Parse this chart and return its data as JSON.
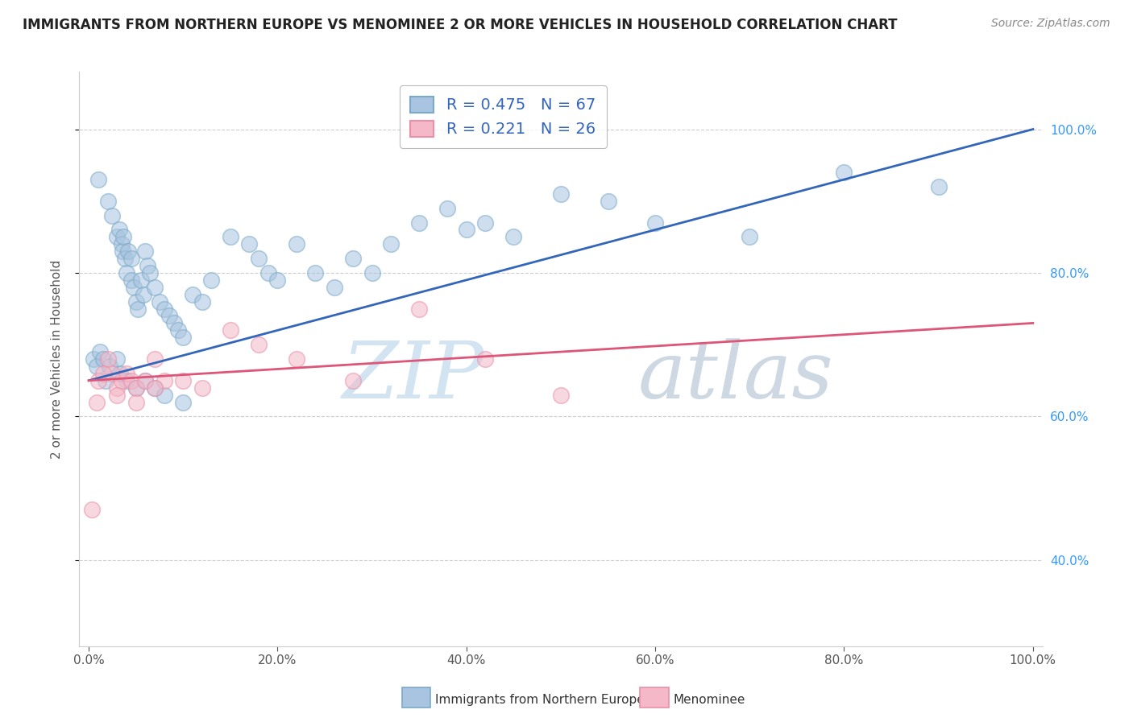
{
  "title": "IMMIGRANTS FROM NORTHERN EUROPE VS MENOMINEE 2 OR MORE VEHICLES IN HOUSEHOLD CORRELATION CHART",
  "source": "Source: ZipAtlas.com",
  "xlabel_bottom": "Immigrants from Northern Europe",
  "ylabel": "2 or more Vehicles in Household",
  "watermark": "ZIPatlas",
  "legend_label_blue": "Immigrants from Northern Europe",
  "legend_label_pink": "Menominee",
  "R_blue": 0.475,
  "N_blue": 67,
  "R_pink": 0.221,
  "N_pink": 26,
  "blue_scatter_color": "#a8c4e0",
  "pink_scatter_color": "#f4b8c8",
  "blue_scatter_edge": "#7aaac8",
  "pink_scatter_edge": "#e890a8",
  "line_blue_color": "#3366bb",
  "line_pink_color": "#dd5577",
  "blue_scatter_x": [
    1.0,
    2.0,
    2.5,
    3.0,
    3.2,
    3.5,
    3.6,
    3.7,
    3.8,
    4.0,
    4.2,
    4.5,
    4.5,
    4.8,
    5.0,
    5.2,
    5.5,
    5.8,
    6.0,
    6.2,
    6.5,
    7.0,
    7.5,
    8.0,
    8.5,
    9.0,
    9.5,
    10.0,
    11.0,
    12.0,
    13.0,
    15.0,
    17.0,
    18.0,
    19.0,
    20.0,
    22.0,
    24.0,
    26.0,
    28.0,
    30.0,
    32.0,
    35.0,
    38.0,
    40.0,
    42.0,
    45.0,
    50.0,
    55.0,
    60.0,
    70.0,
    80.0,
    90.0,
    0.5,
    0.8,
    1.2,
    1.5,
    1.8,
    2.2,
    3.0,
    3.3,
    4.0,
    5.0,
    6.0,
    7.0,
    8.0,
    10.0
  ],
  "blue_scatter_y": [
    93.0,
    90.0,
    88.0,
    85.0,
    86.0,
    84.0,
    83.0,
    85.0,
    82.0,
    80.0,
    83.0,
    82.0,
    79.0,
    78.0,
    76.0,
    75.0,
    79.0,
    77.0,
    83.0,
    81.0,
    80.0,
    78.0,
    76.0,
    75.0,
    74.0,
    73.0,
    72.0,
    71.0,
    77.0,
    76.0,
    79.0,
    85.0,
    84.0,
    82.0,
    80.0,
    79.0,
    84.0,
    80.0,
    78.0,
    82.0,
    80.0,
    84.0,
    87.0,
    89.0,
    86.0,
    87.0,
    85.0,
    91.0,
    90.0,
    87.0,
    85.0,
    94.0,
    92.0,
    68.0,
    67.0,
    69.0,
    68.0,
    65.0,
    67.0,
    68.0,
    66.0,
    65.0,
    64.0,
    65.0,
    64.0,
    63.0,
    62.0
  ],
  "pink_scatter_x": [
    0.3,
    1.0,
    2.0,
    2.5,
    3.0,
    3.5,
    4.0,
    4.5,
    5.0,
    6.0,
    7.0,
    8.0,
    10.0,
    12.0,
    15.0,
    18.0,
    22.0,
    28.0,
    35.0,
    42.0,
    50.0,
    0.8,
    1.5,
    3.0,
    5.0,
    7.0
  ],
  "pink_scatter_y": [
    47.0,
    65.0,
    68.0,
    66.0,
    64.0,
    65.0,
    66.0,
    65.0,
    64.0,
    65.0,
    68.0,
    65.0,
    65.0,
    64.0,
    72.0,
    70.0,
    68.0,
    65.0,
    75.0,
    68.0,
    63.0,
    62.0,
    66.0,
    63.0,
    62.0,
    64.0
  ],
  "blue_trend_x0": 0,
  "blue_trend_y0": 65.0,
  "blue_trend_x1": 100,
  "blue_trend_y1": 100.0,
  "pink_trend_x0": 0,
  "pink_trend_y0": 65.0,
  "pink_trend_x1": 100,
  "pink_trend_y1": 73.0,
  "xlim": [
    -1,
    101
  ],
  "ylim": [
    28,
    108
  ],
  "xticks": [
    0,
    20,
    40,
    60,
    80,
    100
  ],
  "xtick_labels": [
    "0.0%",
    "20.0%",
    "40.0%",
    "60.0%",
    "80.0%",
    "100.0%"
  ],
  "ytick_values": [
    40,
    60,
    80,
    100
  ],
  "ytick_labels": [
    "40.0%",
    "60.0%",
    "80.0%",
    "100.0%"
  ],
  "grid_color": "#cccccc",
  "bg_color": "#ffffff",
  "title_fontsize": 12,
  "axis_label_fontsize": 11,
  "tick_fontsize": 11,
  "source_fontsize": 10,
  "watermark_zip": "ZIP",
  "watermark_atlas": "atlas",
  "watermark_color": "#d8e8f0",
  "watermark_alpha": 0.8
}
